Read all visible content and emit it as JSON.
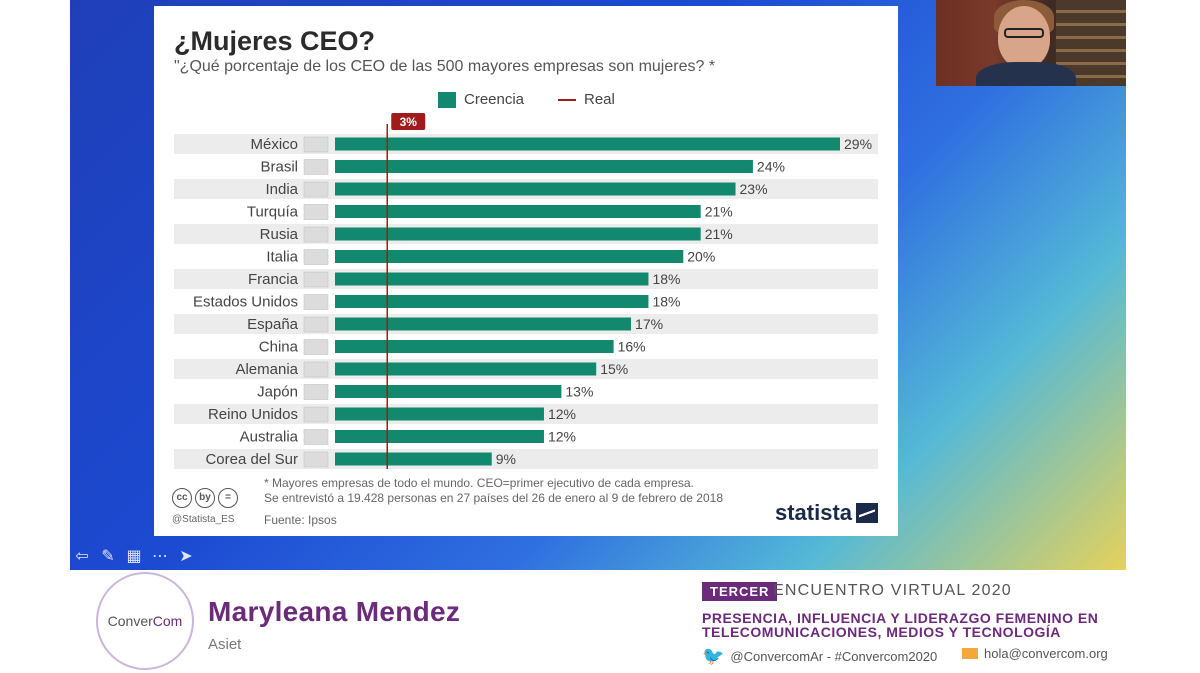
{
  "slide": {
    "title": "¿Mujeres CEO?",
    "subtitle": "\"¿Qué porcentaje de los CEO de las 500 mayores empresas son mujeres? *",
    "legend": {
      "creencia": "Creencia",
      "real": "Real"
    },
    "real_label": "3%",
    "footnote1": "* Mayores empresas de todo el mundo. CEO=primer ejecutivo de cada empresa.",
    "footnote2": "Se entrevistó a 19.428 personas en 27 países del 26 de enero al 9 de febrero de 2018",
    "source": "Fuente: Ipsos",
    "handle": "@Statista_ES",
    "logo": "statista",
    "cc_icons": [
      "cc",
      "by",
      "="
    ]
  },
  "chart_data": {
    "type": "bar",
    "orientation": "horizontal",
    "categories": [
      "México",
      "Brasil",
      "India",
      "Turquía",
      "Rusia",
      "Italia",
      "Francia",
      "Estados Unidos",
      "España",
      "China",
      "Alemania",
      "Japón",
      "Reino Unidos",
      "Australia",
      "Corea del Sur"
    ],
    "series": [
      {
        "name": "Creencia",
        "values": [
          29,
          24,
          23,
          21,
          21,
          20,
          18,
          18,
          17,
          16,
          15,
          13,
          12,
          12,
          9
        ]
      }
    ],
    "value_labels": [
      "29%",
      "24%",
      "23%",
      "21%",
      "21%",
      "20%",
      "18%",
      "18%",
      "17%",
      "16%",
      "15%",
      "13%",
      "12%",
      "12%",
      "9%"
    ],
    "reference_line": {
      "name": "Real",
      "value": 3
    },
    "value_unit": "%",
    "bar_color": "#12896f",
    "reference_color": "#a01c1c",
    "xlim": [
      0,
      29
    ]
  },
  "presenter": {
    "name": "Maryleana Mendez",
    "org": "Asiet",
    "logo_text_a": "Conver",
    "logo_text_b": "Com"
  },
  "event": {
    "badge": "TERCER",
    "title": "ENCUENTRO VIRTUAL 2020",
    "line1": "PRESENCIA, INFLUENCIA Y LIDERAZGO FEMENINO EN",
    "line2": "TELECOMUNICACIONES, MEDIOS Y TECNOLOGÍA",
    "twitter": "@ConvercomAr - #Convercom2020",
    "email": "hola@convercom.org"
  },
  "toolbar": {
    "icons": [
      "arrow-left-icon",
      "pen-icon",
      "slides-icon",
      "more-icon",
      "pointer-icon"
    ]
  }
}
